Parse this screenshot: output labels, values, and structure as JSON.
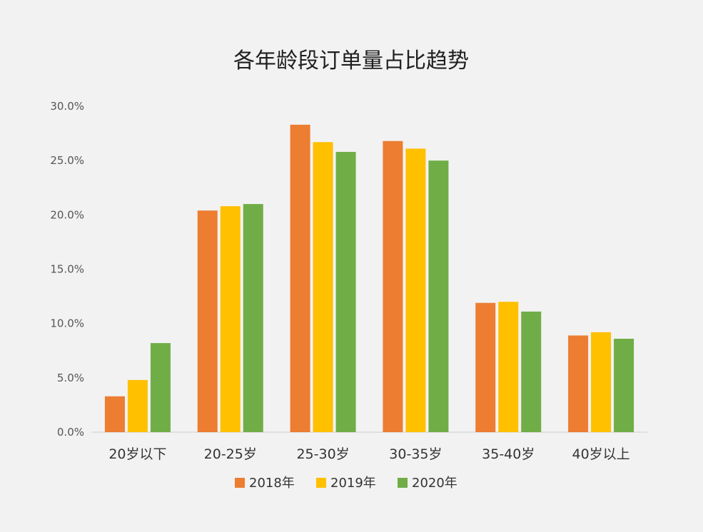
{
  "chart_data": {
    "type": "bar",
    "title": "各年龄段订单量占比趋势",
    "xlabel": "",
    "ylabel": "",
    "categories": [
      "20岁以下",
      "20-25岁",
      "25-30岁",
      "30-35岁",
      "35-40岁",
      "40岁以上"
    ],
    "series": [
      {
        "name": "2018年",
        "color": "#ed7d31",
        "values": [
          3.3,
          20.4,
          28.3,
          26.8,
          11.9,
          8.9
        ]
      },
      {
        "name": "2019年",
        "color": "#ffc000",
        "values": [
          4.8,
          20.8,
          26.7,
          26.1,
          12.0,
          9.2
        ]
      },
      {
        "name": "2020年",
        "color": "#70ad47",
        "values": [
          8.2,
          21.0,
          25.8,
          25.0,
          11.1,
          8.6
        ]
      }
    ],
    "ylim": [
      0,
      30
    ],
    "yticks": [
      "0.0%",
      "5.0%",
      "10.0%",
      "15.0%",
      "20.0%",
      "25.0%",
      "30.0%"
    ],
    "ytick_values": [
      0,
      5,
      10,
      15,
      20,
      25,
      30
    ],
    "grid": false,
    "legend": "bottom",
    "axis_color": "#d9d9d9",
    "background": "#f2f2f2"
  }
}
